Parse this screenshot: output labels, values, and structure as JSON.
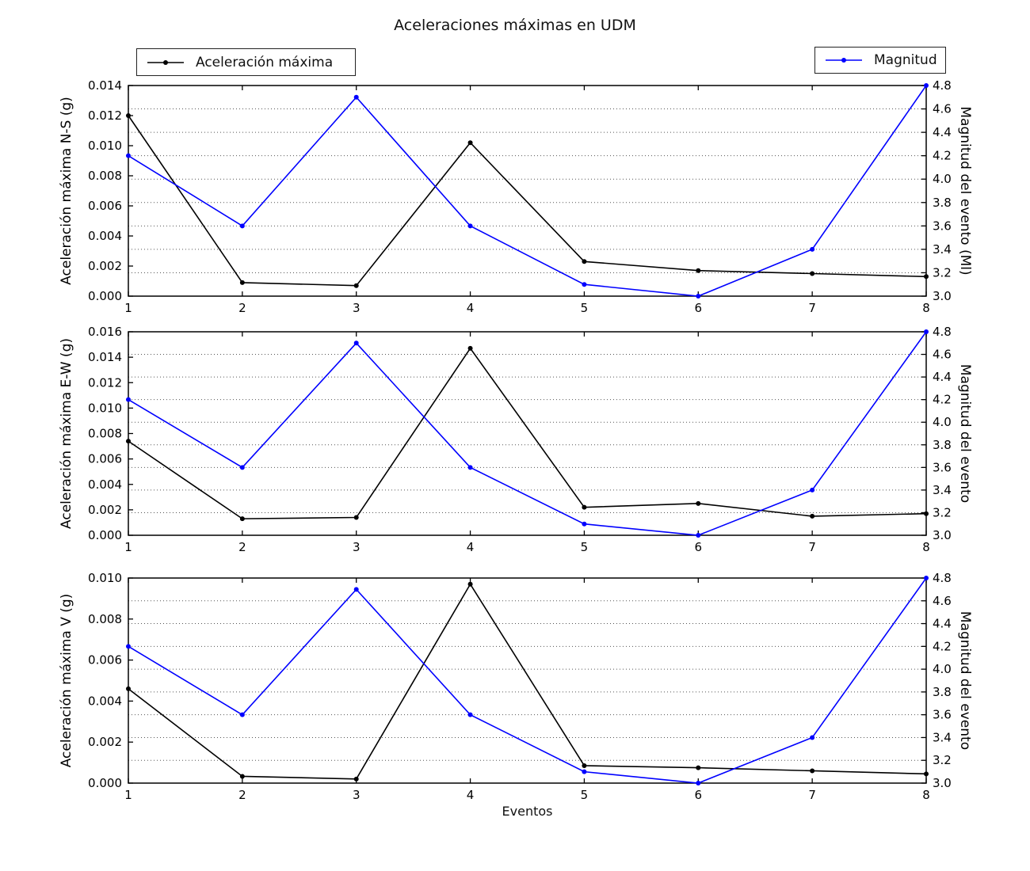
{
  "title": "Aceleraciones máximas en UDM",
  "xlabel": "Eventos",
  "legend": {
    "accel_label": "Aceleración máxima",
    "mag_label": "Magnitud",
    "accel_position": "outside-top-left",
    "mag_position": "outside-top-right"
  },
  "colors": {
    "accel": "#000000",
    "magnitud": "#0000ff",
    "grid": "#555555",
    "axis": "#000000",
    "background": "#ffffff"
  },
  "chart_data": [
    {
      "type": "line",
      "panel": "N-S",
      "x": [
        1,
        2,
        3,
        4,
        5,
        6,
        7,
        8
      ],
      "xticklabels": [
        "1",
        "2",
        "3",
        "4",
        "5",
        "6",
        "7",
        "8"
      ],
      "ylabel": "Aceleración máxima N-S (g)",
      "ylabel_right": "Magnitud del evento (Ml)",
      "ylim": [
        0.0,
        0.014
      ],
      "yticks": [
        "0.000",
        "0.002",
        "0.004",
        "0.006",
        "0.008",
        "0.010",
        "0.012",
        "0.014"
      ],
      "ylim_right": [
        3.0,
        4.8
      ],
      "yticks_right": [
        "3.0",
        "3.2",
        "3.4",
        "3.6",
        "3.8",
        "4.0",
        "4.2",
        "4.4",
        "4.6",
        "4.8"
      ],
      "grid": "horizontal-dotted-at-right-ticks",
      "series": [
        {
          "name": "Aceleración máxima",
          "axis": "left",
          "color": "#000000",
          "values": [
            0.012,
            0.0009,
            0.0007,
            0.0102,
            0.0023,
            0.0017,
            0.0015,
            0.0013
          ]
        },
        {
          "name": "Magnitud",
          "axis": "right",
          "color": "#0000ff",
          "values": [
            4.2,
            3.6,
            4.7,
            3.6,
            3.1,
            3.0,
            3.4,
            4.8
          ]
        }
      ]
    },
    {
      "type": "line",
      "panel": "E-W",
      "x": [
        1,
        2,
        3,
        4,
        5,
        6,
        7,
        8
      ],
      "xticklabels": [
        "1",
        "2",
        "3",
        "4",
        "5",
        "6",
        "7",
        "8"
      ],
      "ylabel": "Aceleración máxima E-W (g)",
      "ylabel_right": "Magnitud del evento",
      "ylim": [
        0.0,
        0.016
      ],
      "yticks": [
        "0.000",
        "0.002",
        "0.004",
        "0.006",
        "0.008",
        "0.010",
        "0.012",
        "0.014",
        "0.016"
      ],
      "ylim_right": [
        3.0,
        4.8
      ],
      "yticks_right": [
        "3.0",
        "3.2",
        "3.4",
        "3.6",
        "3.8",
        "4.0",
        "4.2",
        "4.4",
        "4.6",
        "4.8"
      ],
      "grid": "horizontal-dotted-at-right-ticks",
      "series": [
        {
          "name": "Aceleración máxima",
          "axis": "left",
          "color": "#000000",
          "values": [
            0.0074,
            0.0013,
            0.0014,
            0.0147,
            0.0022,
            0.0025,
            0.0015,
            0.0017
          ]
        },
        {
          "name": "Magnitud",
          "axis": "right",
          "color": "#0000ff",
          "values": [
            4.2,
            3.6,
            4.7,
            3.6,
            3.1,
            3.0,
            3.4,
            4.8
          ]
        }
      ]
    },
    {
      "type": "line",
      "panel": "V",
      "x": [
        1,
        2,
        3,
        4,
        5,
        6,
        7,
        8
      ],
      "xticklabels": [
        "1",
        "2",
        "3",
        "4",
        "5",
        "6",
        "7",
        "8"
      ],
      "ylabel": "Aceleración máxima V (g)",
      "ylabel_right": "Magnitud del evento",
      "ylim": [
        0.0,
        0.01
      ],
      "yticks": [
        "0.000",
        "0.002",
        "0.004",
        "0.006",
        "0.008",
        "0.010"
      ],
      "ylim_right": [
        3.0,
        4.8
      ],
      "yticks_right": [
        "3.0",
        "3.2",
        "3.4",
        "3.6",
        "3.8",
        "4.0",
        "4.2",
        "4.4",
        "4.6",
        "4.8"
      ],
      "grid": "horizontal-dotted-at-right-ticks",
      "series": [
        {
          "name": "Aceleración máxima",
          "axis": "left",
          "color": "#000000",
          "values": [
            0.0046,
            0.00033,
            0.0002,
            0.0097,
            0.00085,
            0.00075,
            0.0006,
            0.00045
          ]
        },
        {
          "name": "Magnitud",
          "axis": "right",
          "color": "#0000ff",
          "values": [
            4.2,
            3.6,
            4.7,
            3.6,
            3.1,
            3.0,
            3.4,
            4.8
          ]
        }
      ]
    }
  ]
}
